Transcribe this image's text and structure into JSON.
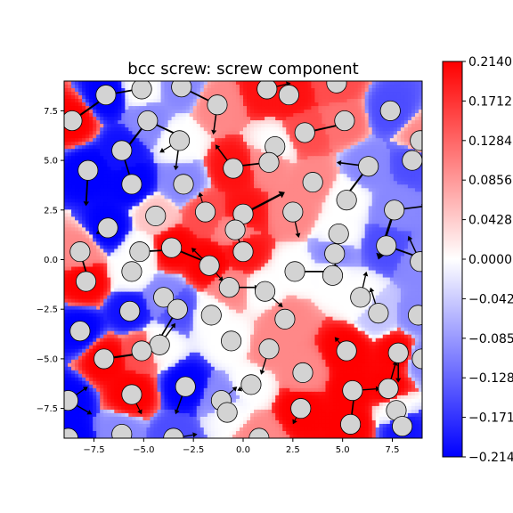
{
  "chart_data": {
    "type": "heatmap",
    "title": "bcc screw: screw component",
    "xlim": [
      -9.0,
      9.0
    ],
    "ylim": [
      -9.0,
      9.0
    ],
    "xticks": [
      -7.5,
      -5.0,
      -2.5,
      0.0,
      2.5,
      5.0,
      7.5
    ],
    "xtick_labels": [
      "−7.5",
      "−5.0",
      "−2.5",
      "0.0",
      "2.5",
      "5.0",
      "7.5"
    ],
    "yticks": [
      -7.5,
      -5.0,
      -2.5,
      0.0,
      2.5,
      5.0,
      7.5
    ],
    "ytick_labels": [
      "−7.5",
      "−5.0",
      "−2.5",
      "0.0",
      "2.5",
      "5.0",
      "7.5"
    ],
    "colorbar": {
      "cmap": "bwr",
      "colors": {
        "low": "#0000ff",
        "mid": "#ffffff",
        "high": "#ff0000"
      },
      "vmin": -0.214,
      "vmax": 0.214,
      "ticks": [
        0.214,
        0.1712,
        0.1284,
        0.0856,
        0.0428,
        0.0,
        -0.0428,
        -0.0856,
        -0.1284,
        -0.1712,
        -0.214
      ],
      "tick_labels": [
        "0.2140",
        "0.1712",
        "0.1284",
        "0.0856",
        "0.0428",
        "0.0000",
        "−0.0428",
        "−0.0856",
        "−0.1284",
        "−0.1712",
        "−0.2140"
      ]
    },
    "atom_style": {
      "fill": "#d3d3d3",
      "edge": "#000000",
      "radius": 0.5
    },
    "atoms": [
      {
        "x": -8.6,
        "y": 7.0,
        "u": 0.214
      },
      {
        "x": -6.9,
        "y": 8.3,
        "u": -0.214
      },
      {
        "x": -5.1,
        "y": 8.6,
        "u": 0.0
      },
      {
        "x": -3.1,
        "y": 8.7,
        "u": -0.1
      },
      {
        "x": -1.3,
        "y": 7.8,
        "u": 0.1
      },
      {
        "x": 1.2,
        "y": 8.6,
        "u": 0.2
      },
      {
        "x": 2.3,
        "y": 8.3,
        "u": 0.2
      },
      {
        "x": 4.7,
        "y": 8.9,
        "u": 0.15
      },
      {
        "x": 7.4,
        "y": 7.5,
        "u": -0.15
      },
      {
        "x": 8.9,
        "y": 6.0,
        "u": 0.1
      },
      {
        "x": -4.8,
        "y": 7.0,
        "u": -0.1
      },
      {
        "x": -3.2,
        "y": 6.0,
        "u": 0.0
      },
      {
        "x": 3.1,
        "y": 6.4,
        "u": 0.15
      },
      {
        "x": 5.1,
        "y": 7.0,
        "u": 0.12
      },
      {
        "x": -6.1,
        "y": 5.5,
        "u": -0.2
      },
      {
        "x": 1.6,
        "y": 5.7,
        "u": 0.0
      },
      {
        "x": -7.8,
        "y": 4.5,
        "u": -0.214
      },
      {
        "x": -0.5,
        "y": 4.6,
        "u": 0.2
      },
      {
        "x": 1.3,
        "y": 4.9,
        "u": 0.1
      },
      {
        "x": 6.3,
        "y": 4.7,
        "u": -0.1
      },
      {
        "x": 8.5,
        "y": 5.0,
        "u": -0.15
      },
      {
        "x": -5.6,
        "y": 3.8,
        "u": -0.214
      },
      {
        "x": -3.0,
        "y": 3.8,
        "u": -0.1
      },
      {
        "x": 3.5,
        "y": 3.9,
        "u": 0.1
      },
      {
        "x": 5.2,
        "y": 3.0,
        "u": 0.0
      },
      {
        "x": -4.4,
        "y": 2.2,
        "u": 0.05
      },
      {
        "x": -1.9,
        "y": 2.4,
        "u": 0.15
      },
      {
        "x": 0.0,
        "y": 2.3,
        "u": 0.2
      },
      {
        "x": 2.5,
        "y": 2.4,
        "u": 0.1
      },
      {
        "x": 7.6,
        "y": 2.5,
        "u": -0.1
      },
      {
        "x": -6.8,
        "y": 1.6,
        "u": -0.214
      },
      {
        "x": -0.4,
        "y": 1.5,
        "u": 0.1
      },
      {
        "x": 4.8,
        "y": 1.3,
        "u": 0.0
      },
      {
        "x": -8.2,
        "y": 0.4,
        "u": 0.1
      },
      {
        "x": -5.2,
        "y": 0.4,
        "u": 0.0
      },
      {
        "x": -3.6,
        "y": 0.6,
        "u": 0.214
      },
      {
        "x": 0.0,
        "y": 0.4,
        "u": 0.2
      },
      {
        "x": 4.6,
        "y": 0.3,
        "u": -0.1
      },
      {
        "x": 7.2,
        "y": 0.7,
        "u": -0.15
      },
      {
        "x": 8.9,
        "y": -0.1,
        "u": -0.1
      },
      {
        "x": -5.6,
        "y": -0.6,
        "u": 0.0
      },
      {
        "x": -1.7,
        "y": -0.3,
        "u": 0.214
      },
      {
        "x": 2.6,
        "y": -0.6,
        "u": 0.0
      },
      {
        "x": 4.5,
        "y": -0.8,
        "u": 0.0
      },
      {
        "x": -7.9,
        "y": -1.1,
        "u": 0.214
      },
      {
        "x": -0.7,
        "y": -1.4,
        "u": 0.1
      },
      {
        "x": 1.1,
        "y": -1.6,
        "u": 0.0
      },
      {
        "x": -4.0,
        "y": -1.9,
        "u": -0.1
      },
      {
        "x": 5.9,
        "y": -1.9,
        "u": 0.0
      },
      {
        "x": -5.7,
        "y": -2.6,
        "u": -0.2
      },
      {
        "x": -3.3,
        "y": -2.5,
        "u": -0.15
      },
      {
        "x": -1.6,
        "y": -2.8,
        "u": 0.0
      },
      {
        "x": 2.1,
        "y": -3.0,
        "u": 0.1
      },
      {
        "x": 6.8,
        "y": -2.7,
        "u": -0.05
      },
      {
        "x": 8.8,
        "y": -2.8,
        "u": -0.1
      },
      {
        "x": -8.2,
        "y": -3.6,
        "u": -0.214
      },
      {
        "x": -4.2,
        "y": -4.3,
        "u": 0.0
      },
      {
        "x": -0.6,
        "y": -4.1,
        "u": 0.0
      },
      {
        "x": 1.3,
        "y": -4.5,
        "u": 0.1
      },
      {
        "x": 5.2,
        "y": -4.6,
        "u": 0.214
      },
      {
        "x": -7.0,
        "y": -5.0,
        "u": 0.214
      },
      {
        "x": -5.1,
        "y": -4.6,
        "u": 0.15
      },
      {
        "x": 7.8,
        "y": -4.7,
        "u": 0.214
      },
      {
        "x": 9.0,
        "y": -5.0,
        "u": -0.1
      },
      {
        "x": 3.0,
        "y": -5.7,
        "u": 0.1
      },
      {
        "x": -2.9,
        "y": -6.4,
        "u": -0.214
      },
      {
        "x": 0.4,
        "y": -6.3,
        "u": 0.0
      },
      {
        "x": 5.5,
        "y": -6.6,
        "u": 0.214
      },
      {
        "x": 7.3,
        "y": -6.5,
        "u": 0.214
      },
      {
        "x": -8.8,
        "y": -7.1,
        "u": -0.214
      },
      {
        "x": -5.6,
        "y": -6.8,
        "u": 0.214
      },
      {
        "x": -1.1,
        "y": -7.1,
        "u": -0.1
      },
      {
        "x": -0.8,
        "y": -7.7,
        "u": 0.0
      },
      {
        "x": 2.9,
        "y": -7.5,
        "u": 0.214
      },
      {
        "x": 7.7,
        "y": -7.6,
        "u": 0.0
      },
      {
        "x": -8.8,
        "y": -9.0,
        "u": -0.214
      },
      {
        "x": -6.1,
        "y": -8.8,
        "u": -0.1
      },
      {
        "x": -3.5,
        "y": -9.0,
        "u": -0.15
      },
      {
        "x": 0.8,
        "y": -9.0,
        "u": 0.1
      },
      {
        "x": 5.4,
        "y": -8.3,
        "u": 0.214
      },
      {
        "x": 8.0,
        "y": -8.4,
        "u": -0.2
      }
    ],
    "arrows": [
      {
        "x": -8.6,
        "y": 7.0,
        "dx": 1.7,
        "dy": 1.2
      },
      {
        "x": -6.9,
        "y": 8.3,
        "dx": 1.7,
        "dy": 0.3
      },
      {
        "x": -3.1,
        "y": 8.7,
        "dx": 1.6,
        "dy": -0.8
      },
      {
        "x": -1.3,
        "y": 7.8,
        "dx": -0.2,
        "dy": -1.5
      },
      {
        "x": 1.2,
        "y": 8.6,
        "dx": 1.2,
        "dy": 0.3
      },
      {
        "x": -4.8,
        "y": 7.0,
        "dx": -1.3,
        "dy": -1.7
      },
      {
        "x": -4.8,
        "y": 7.0,
        "dx": 1.7,
        "dy": -0.8
      },
      {
        "x": -3.2,
        "y": 6.0,
        "dx": -0.2,
        "dy": -1.5
      },
      {
        "x": -3.2,
        "y": 6.0,
        "dx": -1.0,
        "dy": -0.6
      },
      {
        "x": 3.1,
        "y": 6.4,
        "dx": 1.8,
        "dy": 0.4
      },
      {
        "x": 5.1,
        "y": 7.0,
        "dx": 0.5,
        "dy": 0.2
      },
      {
        "x": -6.1,
        "y": 5.5,
        "dx": 0.5,
        "dy": -1.6
      },
      {
        "x": -7.8,
        "y": 4.5,
        "dx": -0.1,
        "dy": -1.8
      },
      {
        "x": -0.5,
        "y": 4.6,
        "dx": -0.9,
        "dy": 1.2
      },
      {
        "x": 1.3,
        "y": 4.9,
        "dx": -1.7,
        "dy": -0.2
      },
      {
        "x": 6.3,
        "y": 4.7,
        "dx": -1.6,
        "dy": 0.2
      },
      {
        "x": 6.3,
        "y": 4.7,
        "dx": -1.2,
        "dy": -1.6
      },
      {
        "x": -1.9,
        "y": 2.4,
        "dx": -0.3,
        "dy": 1.0
      },
      {
        "x": 0.0,
        "y": 2.3,
        "dx": 2.1,
        "dy": 1.1
      },
      {
        "x": 2.5,
        "y": 2.4,
        "dx": 0.3,
        "dy": -1.3
      },
      {
        "x": 7.6,
        "y": 2.5,
        "dx": 1.6,
        "dy": 0.2
      },
      {
        "x": 7.6,
        "y": 2.5,
        "dx": -0.8,
        "dy": -2.5
      },
      {
        "x": -6.8,
        "y": 1.6,
        "dx": -0.6,
        "dy": -0.3
      },
      {
        "x": -0.4,
        "y": 1.5,
        "dx": 0.5,
        "dy": -1.4
      },
      {
        "x": 4.8,
        "y": 1.3,
        "dx": -0.2,
        "dy": -1.8
      },
      {
        "x": -8.2,
        "y": 0.4,
        "dx": 0.5,
        "dy": -1.7
      },
      {
        "x": -5.2,
        "y": 0.4,
        "dx": 1.8,
        "dy": 0.1
      },
      {
        "x": -3.6,
        "y": 0.6,
        "dx": 1.7,
        "dy": -0.7
      },
      {
        "x": -1.7,
        "y": -0.3,
        "dx": -0.9,
        "dy": 0.9
      },
      {
        "x": -1.7,
        "y": -0.3,
        "dx": 0.7,
        "dy": -0.8
      },
      {
        "x": 2.6,
        "y": -0.6,
        "dx": 1.7,
        "dy": 0.0
      },
      {
        "x": 7.2,
        "y": 0.7,
        "dx": 1.7,
        "dy": -0.6
      },
      {
        "x": 8.9,
        "y": -0.1,
        "dx": -0.6,
        "dy": 1.3
      },
      {
        "x": -0.7,
        "y": -1.4,
        "dx": 1.5,
        "dy": 0.0
      },
      {
        "x": 1.1,
        "y": -1.6,
        "dx": 0.9,
        "dy": -0.8
      },
      {
        "x": -3.3,
        "y": -2.5,
        "dx": -0.9,
        "dy": -1.5
      },
      {
        "x": -3.3,
        "y": -2.5,
        "dx": -0.6,
        "dy": 0.5
      },
      {
        "x": 5.9,
        "y": -1.9,
        "dx": 0.3,
        "dy": 1.3
      },
      {
        "x": 6.8,
        "y": -2.7,
        "dx": -0.4,
        "dy": 1.3
      },
      {
        "x": 8.8,
        "y": -2.8,
        "dx": 0.5,
        "dy": 0.9
      },
      {
        "x": -4.2,
        "y": -4.3,
        "dx": 0.8,
        "dy": 1.1
      },
      {
        "x": -7.0,
        "y": -5.0,
        "dx": 2.1,
        "dy": 0.3
      },
      {
        "x": 1.3,
        "y": -4.5,
        "dx": -0.4,
        "dy": -1.3
      },
      {
        "x": 5.2,
        "y": -4.6,
        "dx": -0.6,
        "dy": 0.7
      },
      {
        "x": 7.8,
        "y": -4.7,
        "dx": 0.0,
        "dy": -1.5
      },
      {
        "x": 7.3,
        "y": -6.5,
        "dx": 0.4,
        "dy": 1.4
      },
      {
        "x": 5.5,
        "y": -6.6,
        "dx": 1.4,
        "dy": 0.1
      },
      {
        "x": -8.8,
        "y": -7.1,
        "dx": 1.0,
        "dy": 0.7
      },
      {
        "x": -8.8,
        "y": -7.1,
        "dx": 1.2,
        "dy": -0.7
      },
      {
        "x": -2.9,
        "y": -6.4,
        "dx": -0.5,
        "dy": -1.4
      },
      {
        "x": 0.4,
        "y": -6.3,
        "dx": -0.7,
        "dy": -0.3
      },
      {
        "x": 5.4,
        "y": -8.3,
        "dx": 0.2,
        "dy": 1.6
      },
      {
        "x": -5.6,
        "y": -6.8,
        "dx": 0.5,
        "dy": -1.0
      },
      {
        "x": 2.9,
        "y": -7.5,
        "dx": -0.4,
        "dy": -0.8
      },
      {
        "x": -3.5,
        "y": -9.0,
        "dx": 1.2,
        "dy": 0.2
      },
      {
        "x": -1.1,
        "y": -7.1,
        "dx": 0.8,
        "dy": 0.7
      }
    ]
  }
}
